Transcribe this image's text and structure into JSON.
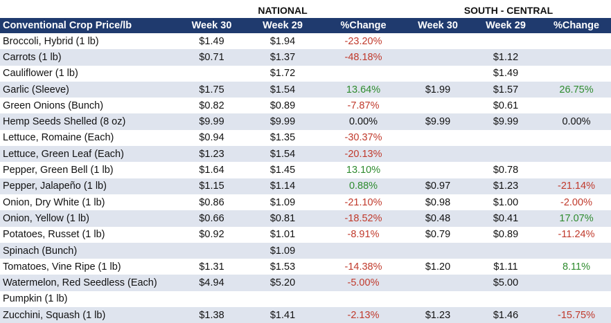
{
  "groups": {
    "national": "NATIONAL",
    "south_central": "SOUTH - CENTRAL"
  },
  "headers": [
    "Conventional Crop Price/lb",
    "Week 30",
    "Week 29",
    "%Change",
    "Week 30",
    "Week 29",
    "%Change"
  ],
  "colors": {
    "header_bg": "#1f3a6e",
    "stripe": "#dfe4ee",
    "negative": "#c0392b",
    "positive": "#2e8b2e"
  },
  "rows": [
    [
      "Broccoli, Hybrid (1 lb)",
      "$1.49",
      "$1.94",
      "-23.20%",
      "",
      "",
      ""
    ],
    [
      "Carrots (1 lb)",
      "$0.71",
      "$1.37",
      "-48.18%",
      "",
      "$1.12",
      ""
    ],
    [
      "Cauliflower (1 lb)",
      "",
      "$1.72",
      "",
      "",
      "$1.49",
      ""
    ],
    [
      "Garlic (Sleeve)",
      "$1.75",
      "$1.54",
      "13.64%",
      "$1.99",
      "$1.57",
      "26.75%"
    ],
    [
      "Green Onions (Bunch)",
      "$0.82",
      "$0.89",
      "-7.87%",
      "",
      "$0.61",
      ""
    ],
    [
      "Hemp Seeds Shelled (8 oz)",
      "$9.99",
      "$9.99",
      "0.00%",
      "$9.99",
      "$9.99",
      "0.00%"
    ],
    [
      "Lettuce, Romaine (Each)",
      "$0.94",
      "$1.35",
      "-30.37%",
      "",
      "",
      ""
    ],
    [
      "Lettuce, Green Leaf (Each)",
      "$1.23",
      "$1.54",
      "-20.13%",
      "",
      "",
      ""
    ],
    [
      "Pepper, Green Bell (1 lb)",
      "$1.64",
      "$1.45",
      "13.10%",
      "",
      "$0.78",
      ""
    ],
    [
      "Pepper, Jalapeño (1 lb)",
      "$1.15",
      "$1.14",
      "0.88%",
      "$0.97",
      "$1.23",
      "-21.14%"
    ],
    [
      "Onion, Dry White (1 lb)",
      "$0.86",
      "$1.09",
      "-21.10%",
      "$0.98",
      "$1.00",
      "-2.00%"
    ],
    [
      "Onion, Yellow (1 lb)",
      "$0.66",
      "$0.81",
      "-18.52%",
      "$0.48",
      "$0.41",
      "17.07%"
    ],
    [
      "Potatoes, Russet (1 lb)",
      "$0.92",
      "$1.01",
      "-8.91%",
      "$0.79",
      "$0.89",
      "-11.24%"
    ],
    [
      "Spinach (Bunch)",
      "",
      "$1.09",
      "",
      "",
      "",
      ""
    ],
    [
      "Tomatoes, Vine Ripe (1 lb)",
      "$1.31",
      "$1.53",
      "-14.38%",
      "$1.20",
      "$1.11",
      "8.11%"
    ],
    [
      "Watermelon, Red Seedless (Each)",
      "$4.94",
      "$5.20",
      "-5.00%",
      "",
      "$5.00",
      ""
    ],
    [
      "Pumpkin (1 lb)",
      "",
      "",
      "",
      "",
      "",
      ""
    ],
    [
      "Zucchini, Squash (1 lb)",
      "$1.38",
      "$1.41",
      "-2.13%",
      "$1.23",
      "$1.46",
      "-15.75%"
    ]
  ]
}
